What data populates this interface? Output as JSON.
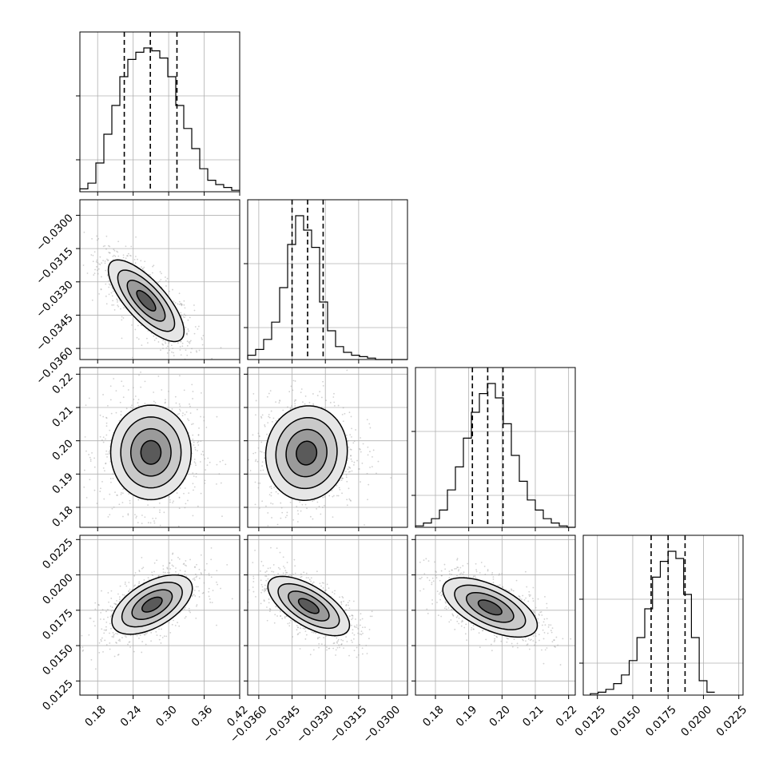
{
  "chart_data": {
    "type": "corner",
    "parameters": [
      {
        "range": [
          0.15,
          0.42
        ],
        "ticks": [
          0.18,
          0.24,
          0.3,
          0.36,
          0.42
        ],
        "tick_labels": [
          "0.18",
          "0.24",
          "0.30",
          "0.36",
          "0.42"
        ],
        "quantiles": [
          0.225,
          0.269,
          0.314
        ],
        "hist_x": [
          0.15,
          0.1635,
          0.177,
          0.1905,
          0.204,
          0.2175,
          0.231,
          0.2445,
          0.258,
          0.2715,
          0.285,
          0.2985,
          0.312,
          0.3255,
          0.339,
          0.3525,
          0.366,
          0.3795,
          0.393,
          0.4065
        ],
        "hist_y": [
          0.02,
          0.06,
          0.2,
          0.4,
          0.6,
          0.8,
          0.92,
          0.97,
          1.0,
          0.98,
          0.93,
          0.8,
          0.6,
          0.44,
          0.3,
          0.16,
          0.08,
          0.05,
          0.03,
          0.01
        ]
      },
      {
        "range": [
          -0.0365,
          -0.0293
        ],
        "ticks": [
          -0.036,
          -0.0345,
          -0.033,
          -0.0315,
          -0.03
        ],
        "tick_labels": [
          "−0.0360",
          "−0.0345",
          "−0.0330",
          "−0.0315",
          "−0.0300"
        ],
        "quantiles": [
          -0.0345,
          -0.0338,
          -0.0331
        ],
        "hist_x": [
          -0.0365,
          -0.03614,
          -0.03578,
          -0.03542,
          -0.03506,
          -0.0347,
          -0.03434,
          -0.03398,
          -0.03362,
          -0.03326,
          -0.0329,
          -0.03254,
          -0.03218,
          -0.03182,
          -0.03146,
          -0.0311,
          -0.03074,
          -0.03038,
          -0.03002,
          -0.02966
        ],
        "hist_y": [
          0.03,
          0.07,
          0.14,
          0.26,
          0.5,
          0.8,
          1.0,
          0.9,
          0.78,
          0.4,
          0.2,
          0.09,
          0.05,
          0.03,
          0.02,
          0.01,
          0.0,
          0.0,
          0.0,
          0.0
        ]
      },
      {
        "range": [
          0.174,
          0.222
        ],
        "ticks": [
          0.18,
          0.19,
          0.2,
          0.21,
          0.22
        ],
        "tick_labels": [
          "0.18",
          "0.19",
          "0.20",
          "0.21",
          "0.22"
        ],
        "quantiles": [
          0.1911,
          0.1957,
          0.2003
        ],
        "hist_x": [
          0.174,
          0.1764,
          0.1788,
          0.1812,
          0.1836,
          0.186,
          0.1884,
          0.1908,
          0.1932,
          0.1956,
          0.198,
          0.2004,
          0.2028,
          0.2052,
          0.2076,
          0.21,
          0.2124,
          0.2148,
          0.2172,
          0.2196
        ],
        "hist_y": [
          0.01,
          0.03,
          0.06,
          0.12,
          0.26,
          0.42,
          0.62,
          0.8,
          0.93,
          1.0,
          0.9,
          0.72,
          0.5,
          0.32,
          0.19,
          0.12,
          0.06,
          0.03,
          0.01,
          0.0
        ]
      },
      {
        "range": [
          0.0115,
          0.0228
        ],
        "ticks": [
          0.0125,
          0.015,
          0.0175,
          0.02,
          0.0225
        ],
        "tick_labels": [
          "0.0125",
          "0.0150",
          "0.0175",
          "0.0200",
          "0.0225"
        ],
        "quantiles": [
          0.0163,
          0.0175,
          0.0187
        ],
        "hist_x": [
          0.012,
          0.01255,
          0.0131,
          0.01365,
          0.0142,
          0.01475,
          0.0153,
          0.01585,
          0.0164,
          0.01695,
          0.0175,
          0.01805,
          0.0186,
          0.01915,
          0.0197,
          0.02025
        ],
        "hist_y": [
          0.01,
          0.02,
          0.04,
          0.08,
          0.14,
          0.24,
          0.4,
          0.6,
          0.82,
          0.93,
          1.0,
          0.95,
          0.7,
          0.4,
          0.1,
          0.02
        ]
      }
    ],
    "pairs": [
      {
        "i": 1,
        "j": 0,
        "center": [
          0.262,
          -0.03385
        ],
        "sigma": [
          0.032,
          0.00092
        ],
        "rho": -0.75
      },
      {
        "i": 2,
        "j": 0,
        "center": [
          0.27,
          0.1965
        ],
        "sigma": [
          0.034,
          0.0071
        ],
        "rho": 0.0
      },
      {
        "i": 2,
        "j": 1,
        "center": [
          -0.03385,
          0.1963
        ],
        "sigma": [
          0.00092,
          0.0071
        ],
        "rho": 0.05
      },
      {
        "i": 3,
        "j": 0,
        "center": [
          0.272,
          0.0179
        ],
        "sigma": [
          0.034,
          0.00105
        ],
        "rho": 0.55
      },
      {
        "i": 3,
        "j": 1,
        "center": [
          -0.03375,
          0.0178
        ],
        "sigma": [
          0.00092,
          0.00105
        ],
        "rho": -0.65
      },
      {
        "i": 3,
        "j": 2,
        "center": [
          0.1964,
          0.0177
        ],
        "sigma": [
          0.0071,
          0.00105
        ],
        "rho": -0.6
      }
    ],
    "contour_levels_sigma": [
      0.5,
      1.0,
      1.5,
      2.0
    ],
    "colors": {
      "line": "#000000",
      "grid": "#b0b0b0",
      "points": "#9a9a9a",
      "background": "#ffffff"
    },
    "grid": true
  }
}
